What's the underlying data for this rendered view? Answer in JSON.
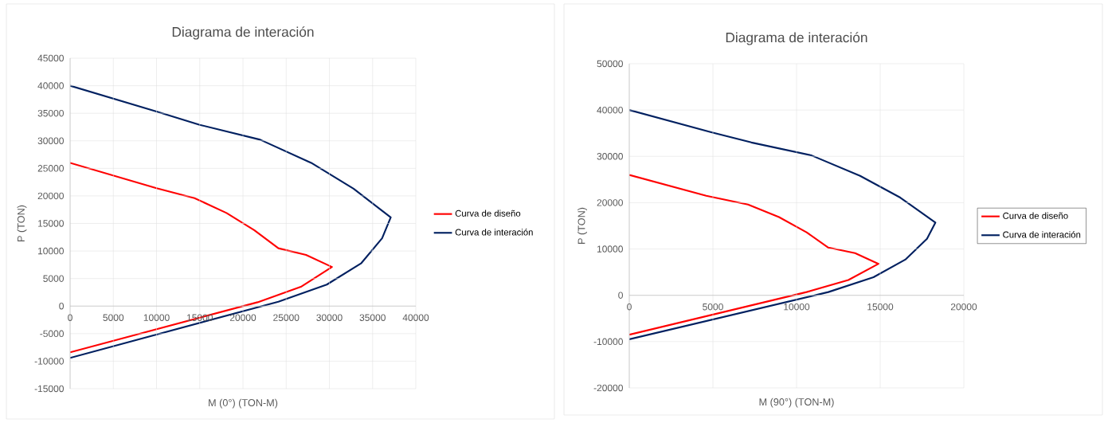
{
  "chart_data": [
    {
      "type": "line",
      "title": "Diagrama de interación",
      "xlabel": "M (0°) (TON-M)",
      "ylabel": "P (TON)",
      "xlim": [
        0,
        40000
      ],
      "xticks": [
        0,
        5000,
        10000,
        15000,
        20000,
        25000,
        30000,
        35000,
        40000
      ],
      "ylim": [
        -15000,
        45000
      ],
      "yticks": [
        -15000,
        -10000,
        -5000,
        0,
        5000,
        10000,
        15000,
        20000,
        25000,
        30000,
        35000,
        40000,
        45000
      ],
      "grid": true,
      "legend": "right",
      "marker": "none",
      "series": [
        {
          "name": "Curva de diseño",
          "color": "#ff0000",
          "x": [
            0,
            10000,
            14400,
            18100,
            21300,
            24100,
            27300,
            30300,
            26700,
            21700,
            0
          ],
          "values": [
            26000,
            21400,
            19600,
            16900,
            13800,
            10500,
            9300,
            7100,
            3500,
            700,
            -8400
          ]
        },
        {
          "name": "Curva de interación",
          "color": "#002060",
          "x": [
            0,
            10000,
            15000,
            22000,
            27900,
            32800,
            37100,
            36100,
            33700,
            29700,
            24100,
            0
          ],
          "values": [
            40000,
            35300,
            32900,
            30200,
            26000,
            21300,
            16100,
            12300,
            7800,
            3900,
            800,
            -9400
          ]
        }
      ]
    },
    {
      "type": "line",
      "title": "Diagrama de interación",
      "xlabel": "M (90°) (TON-M)",
      "ylabel": "P (TON)",
      "xlim": [
        0,
        20000
      ],
      "xticks": [
        0,
        5000,
        10000,
        15000,
        20000
      ],
      "ylim": [
        -20000,
        50000
      ],
      "yticks": [
        -20000,
        -10000,
        0,
        10000,
        20000,
        30000,
        40000,
        50000
      ],
      "grid": true,
      "legend": "right",
      "marker": "none",
      "series": [
        {
          "name": "Curva de diseño",
          "color": "#ff0000",
          "x": [
            0,
            4600,
            7100,
            8950,
            10600,
            11900,
            13500,
            14900,
            13100,
            10600,
            0
          ],
          "values": [
            26000,
            21500,
            19600,
            16900,
            13600,
            10300,
            9100,
            6800,
            3300,
            700,
            -8500
          ]
        },
        {
          "name": "Curva de interación",
          "color": "#002060",
          "x": [
            0,
            4900,
            7300,
            10900,
            13800,
            16200,
            18300,
            17800,
            16500,
            14600,
            11900,
            0
          ],
          "values": [
            40000,
            35200,
            33000,
            30200,
            25800,
            21100,
            15700,
            12200,
            7700,
            3900,
            700,
            -9500
          ]
        }
      ]
    }
  ]
}
